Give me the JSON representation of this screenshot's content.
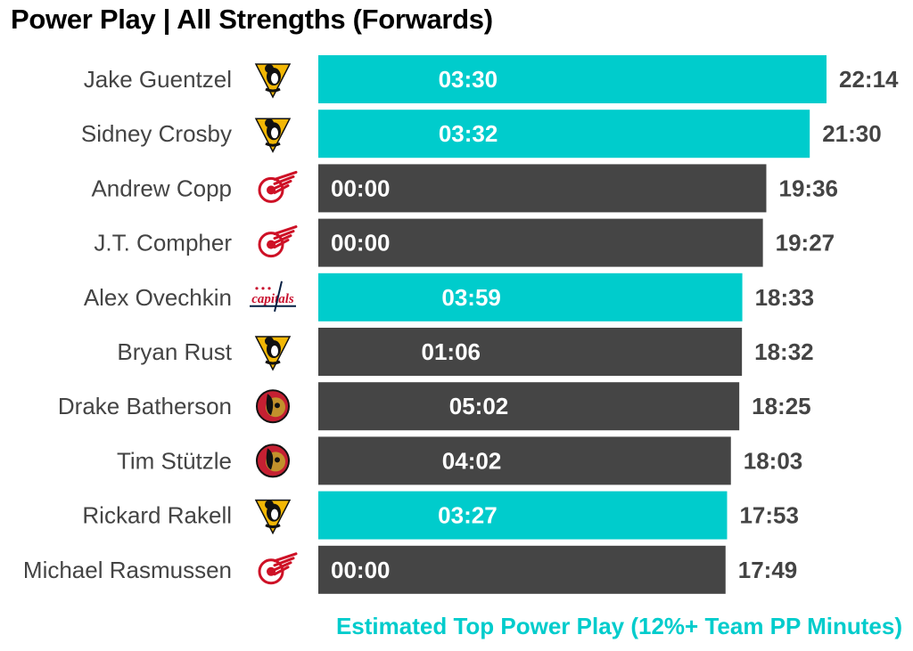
{
  "title": "Power Play | All Strengths (Forwards)",
  "footnote": "Estimated Top Power Play (12%+ Team PP Minutes)",
  "colors": {
    "highlight": "#00cccc",
    "base": "#454545",
    "label_dark": "#444444"
  },
  "chart_data": {
    "type": "bar",
    "orientation": "horizontal",
    "value_unit": "mm:ss",
    "xlim": [
      "00:00",
      "22:14"
    ],
    "grid": false,
    "rows": [
      {
        "player": "Jake Guentzel",
        "team_icon": "penguins-logo-icon",
        "total": "22:14",
        "pp": "03:30",
        "top_pp": true
      },
      {
        "player": "Sidney Crosby",
        "team_icon": "penguins-logo-icon",
        "total": "21:30",
        "pp": "03:32",
        "top_pp": true
      },
      {
        "player": "Andrew Copp",
        "team_icon": "red-wings-logo-icon",
        "total": "19:36",
        "pp": "00:00",
        "top_pp": false
      },
      {
        "player": "J.T. Compher",
        "team_icon": "red-wings-logo-icon",
        "total": "19:27",
        "pp": "00:00",
        "top_pp": false
      },
      {
        "player": "Alex Ovechkin",
        "team_icon": "capitals-logo-icon",
        "total": "18:33",
        "pp": "03:59",
        "top_pp": true
      },
      {
        "player": "Bryan Rust",
        "team_icon": "penguins-logo-icon",
        "total": "18:32",
        "pp": "01:06",
        "top_pp": false
      },
      {
        "player": "Drake Batherson",
        "team_icon": "senators-logo-icon",
        "total": "18:25",
        "pp": "05:02",
        "top_pp": false
      },
      {
        "player": "Tim Stützle",
        "team_icon": "senators-logo-icon",
        "total": "18:03",
        "pp": "04:02",
        "top_pp": false
      },
      {
        "player": "Rickard Rakell",
        "team_icon": "penguins-logo-icon",
        "total": "17:53",
        "pp": "03:27",
        "top_pp": true
      },
      {
        "player": "Michael Rasmussen",
        "team_icon": "red-wings-logo-icon",
        "total": "17:49",
        "pp": "00:00",
        "top_pp": false
      }
    ]
  }
}
